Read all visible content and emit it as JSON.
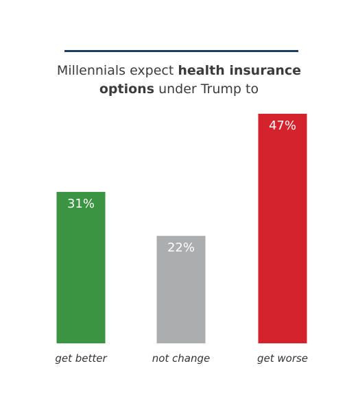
{
  "title": {
    "part1": "Millennials expect",
    "bold1": "health insurance",
    "bold2": "options",
    "part2": "under Trump to"
  },
  "chart_data": {
    "type": "bar",
    "title": "Millennials expect health insurance options under Trump to",
    "categories": [
      "get better",
      "not change",
      "get worse"
    ],
    "values": [
      31,
      22,
      47
    ],
    "value_labels": [
      "31%",
      "22%",
      "47%"
    ],
    "colors": [
      "#3a9442",
      "#acadaf",
      "#d4232c"
    ],
    "ylim": [
      0,
      47
    ],
    "grid": false,
    "legend": "none"
  }
}
